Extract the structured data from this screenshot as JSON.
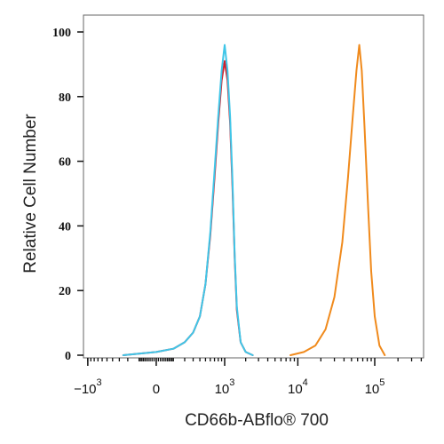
{
  "chart_data": {
    "type": "line",
    "title": "",
    "xlabel": "CD66b-ABflo® 700",
    "ylabel": "Relative Cell Number",
    "xscale": "biexponential",
    "ylim": [
      0,
      100
    ],
    "y_ticks": [
      "0",
      "20",
      "40",
      "60",
      "80",
      "100"
    ],
    "x_ticks": [
      {
        "value": -1000,
        "base": "−10",
        "exp": "3"
      },
      {
        "value": 0,
        "base": "0",
        "exp": ""
      },
      {
        "value": 1000,
        "base": "10",
        "exp": "3"
      },
      {
        "value": 10000,
        "base": "10",
        "exp": "4"
      },
      {
        "value": 100000,
        "base": "10",
        "exp": "5"
      }
    ],
    "grid": false,
    "legend": "none",
    "series": [
      {
        "color": "#d11f2b",
        "x": [
          -250,
          -100,
          0,
          100,
          200,
          300,
          400,
          500,
          600,
          700,
          800,
          900,
          1000,
          1100,
          1200,
          1300,
          1400,
          1500,
          1700,
          2000,
          2500
        ],
        "y": [
          0,
          0.5,
          1,
          2,
          4,
          7,
          12,
          22,
          37,
          55,
          72,
          85,
          91,
          85,
          72,
          52,
          30,
          14,
          4,
          1,
          0
        ]
      },
      {
        "color": "#3fc6e8",
        "x": [
          -250,
          -100,
          0,
          100,
          200,
          300,
          400,
          500,
          600,
          700,
          800,
          900,
          1000,
          1100,
          1200,
          1300,
          1400,
          1500,
          1700,
          2000,
          2500
        ],
        "y": [
          0,
          0.5,
          1,
          2,
          4,
          7,
          12,
          22,
          38,
          57,
          74,
          88,
          96,
          88,
          74,
          54,
          31,
          15,
          4,
          1,
          0
        ]
      },
      {
        "color": "#f08a1c",
        "x": [
          8000,
          12000,
          17000,
          23000,
          30000,
          38000,
          45000,
          52000,
          58000,
          63000,
          68000,
          74000,
          82000,
          90000,
          100000,
          115000,
          135000
        ],
        "y": [
          0,
          1,
          3,
          8,
          18,
          35,
          55,
          74,
          88,
          96,
          88,
          70,
          46,
          26,
          12,
          3,
          0
        ]
      }
    ]
  }
}
